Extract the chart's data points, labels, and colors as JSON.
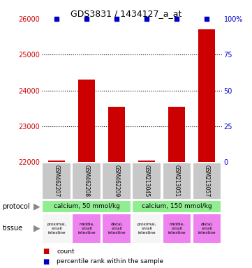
{
  "title": "GDS3831 / 1434127_a_at",
  "bar_labels": [
    "GSM462207",
    "GSM462208",
    "GSM462209",
    "GSM213045",
    "GSM213051",
    "GSM213057"
  ],
  "bar_values": [
    22050,
    24300,
    23550,
    22050,
    23550,
    25700
  ],
  "percentile_values": [
    100,
    100,
    100,
    100,
    100,
    100
  ],
  "ylim_left": [
    22000,
    26000
  ],
  "ylim_right": [
    0,
    100
  ],
  "yticks_left": [
    22000,
    23000,
    24000,
    25000,
    26000
  ],
  "yticks_right": [
    0,
    25,
    50,
    75,
    100
  ],
  "bar_color": "#cc0000",
  "percentile_color": "#0000cc",
  "protocol_labels": [
    "calcium, 50 mmol/kg",
    "calcium, 150 mmol/kg"
  ],
  "tissue_labels": [
    "proximal,\nsmall\nintestine",
    "middle,\nsmall\nintestine",
    "distal,\nsmall\nintestine",
    "proximal,\nsmall\nintestine",
    "middle,\nsmall\nintestine",
    "distal,\nsmall\nintestine"
  ],
  "tissue_colors": [
    "#f5f5f5",
    "#ee82ee",
    "#ee82ee",
    "#f5f5f5",
    "#ee82ee",
    "#ee82ee"
  ],
  "protocol_color": "#90ee90",
  "sample_bg_color": "#c8c8c8",
  "legend_count_color": "#cc0000",
  "legend_percentile_color": "#0000cc",
  "grid_color": "#000000",
  "left_axis_color": "#cc0000",
  "right_axis_color": "#0000cc"
}
